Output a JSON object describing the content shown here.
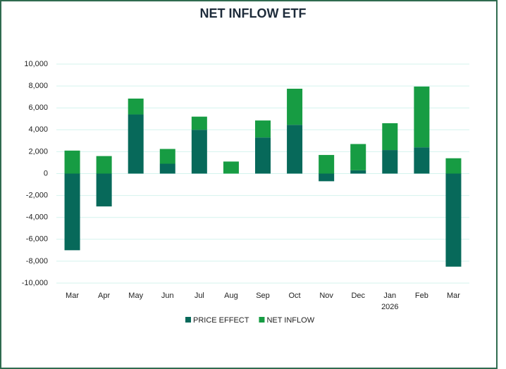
{
  "chart_data": {
    "type": "stacked_bar",
    "title": "NET INFLOW ETF",
    "categories": [
      "Mar",
      "Apr",
      "May",
      "Jun",
      "Jul",
      "Aug",
      "Sep",
      "Oct",
      "Nov",
      "Dec",
      "Jan",
      "Feb",
      "Mar"
    ],
    "x_sublabels": [
      null,
      null,
      null,
      null,
      null,
      null,
      null,
      null,
      null,
      null,
      "2026",
      null,
      null
    ],
    "series": [
      {
        "name": "PRICE EFFECT",
        "color": "#07695a",
        "values": [
          -7000,
          -3000,
          5400,
          900,
          4000,
          0,
          3300,
          4450,
          -700,
          300,
          2150,
          2400,
          -8500
        ]
      },
      {
        "name": "NET INFLOW",
        "color": "#179c43",
        "values": [
          2100,
          1600,
          1450,
          1350,
          1200,
          1100,
          1550,
          3300,
          1700,
          2400,
          2450,
          5550,
          1400
        ]
      }
    ],
    "ylim": [
      -10000,
      10000
    ],
    "yticks": [
      {
        "value": -10000,
        "label": "-10,000"
      },
      {
        "value": -8000,
        "label": "-8,000"
      },
      {
        "value": -6000,
        "label": "-6,000"
      },
      {
        "value": -4000,
        "label": "-4,000"
      },
      {
        "value": -2000,
        "label": "-2,000"
      },
      0,
      {
        "value": 2000,
        "label": "2,000"
      },
      {
        "value": 4000,
        "label": "4,000"
      },
      {
        "value": 6000,
        "label": "6,000"
      },
      {
        "value": 8000,
        "label": "8,000"
      },
      {
        "value": 10000,
        "label": "10,000"
      }
    ],
    "grid": true,
    "legend": "bottom"
  }
}
